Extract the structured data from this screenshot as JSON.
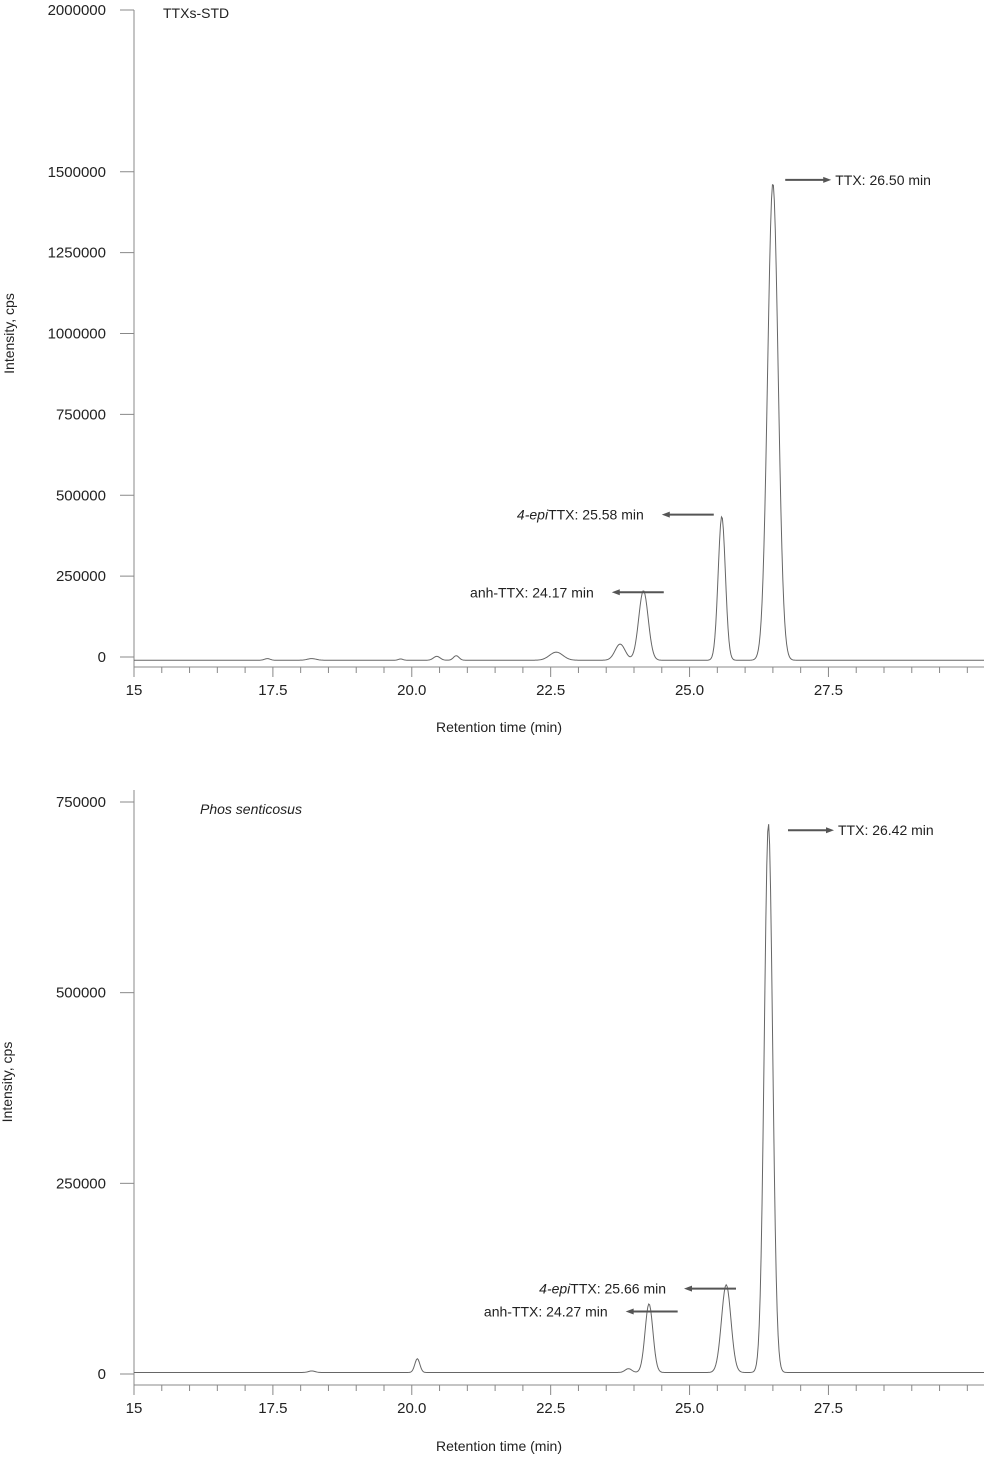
{
  "chart_data": [
    {
      "type": "line",
      "title": "TTXs-STD",
      "xlabel": "Retention time (min)",
      "ylabel": "Intensity, cps",
      "xlim": [
        15,
        30.3
      ],
      "ylim": [
        0,
        2000000
      ],
      "x_ticks": [
        "15",
        "17.5",
        "20.0",
        "22.5",
        "25.0",
        "27.5"
      ],
      "x_tick_values": [
        15,
        17.5,
        20.0,
        22.5,
        25.0,
        27.5
      ],
      "y_ticks": [
        "0",
        "250000",
        "500000",
        "750000",
        "1000000",
        "1250000",
        "1500000",
        "2000000"
      ],
      "y_tick_values": [
        0,
        250000,
        500000,
        750000,
        1000000,
        1250000,
        1500000,
        2000000
      ],
      "grid": false,
      "baseline": -10000,
      "peaks": [
        {
          "x": 17.4,
          "y": 5000,
          "w": 0.05
        },
        {
          "x": 18.2,
          "y": 5000,
          "w": 0.08
        },
        {
          "x": 19.8,
          "y": 4000,
          "w": 0.04
        },
        {
          "x": 20.45,
          "y": 12000,
          "w": 0.06
        },
        {
          "x": 20.8,
          "y": 14000,
          "w": 0.05
        },
        {
          "x": 22.6,
          "y": 25000,
          "w": 0.12
        },
        {
          "x": 23.75,
          "y": 50000,
          "w": 0.09
        },
        {
          "x": 24.17,
          "y": 215000,
          "w": 0.085
        },
        {
          "x": 25.58,
          "y": 445000,
          "w": 0.065
        },
        {
          "x": 26.5,
          "y": 1475000,
          "w": 0.095
        }
      ],
      "annotations": [
        {
          "prefix": "",
          "italic": "",
          "text": "TTX: 26.50 min",
          "x": 27.55,
          "y": 1475000,
          "arrow": "right"
        },
        {
          "prefix": "",
          "italic": "4-epi",
          "text": "TTX: 25.58 min",
          "x": 24.5,
          "y": 440000,
          "arrow": "left"
        },
        {
          "prefix": "",
          "italic": "",
          "text": "anh-TTX: 24.17 min",
          "x": 23.6,
          "y": 200000,
          "arrow": "left"
        }
      ]
    },
    {
      "type": "line",
      "title": "Phos senticosus",
      "xlabel": "Retention time (min)",
      "ylabel": "Intensity, cps",
      "xlim": [
        15,
        30.3
      ],
      "ylim": [
        0,
        750000
      ],
      "x_ticks": [
        "15",
        "17.5",
        "20.0",
        "22.5",
        "25.0",
        "27.5"
      ],
      "x_tick_values": [
        15,
        17.5,
        20.0,
        22.5,
        25.0,
        27.5
      ],
      "y_ticks": [
        "0",
        "250000",
        "500000",
        "750000"
      ],
      "y_tick_values": [
        0,
        250000,
        500000,
        750000
      ],
      "grid": false,
      "baseline": 2000,
      "peaks": [
        {
          "x": 18.2,
          "y": 2000,
          "w": 0.06
        },
        {
          "x": 20.1,
          "y": 18000,
          "w": 0.045
        },
        {
          "x": 23.9,
          "y": 5000,
          "w": 0.06
        },
        {
          "x": 24.27,
          "y": 90000,
          "w": 0.07
        },
        {
          "x": 25.66,
          "y": 115000,
          "w": 0.085
        },
        {
          "x": 26.42,
          "y": 720000,
          "w": 0.075
        }
      ],
      "annotations": [
        {
          "prefix": "",
          "italic": "",
          "text": "TTX: 26.42 min",
          "x": 27.6,
          "y": 713000,
          "arrow": "right"
        },
        {
          "prefix": "",
          "italic": "4-epi",
          "text": "TTX: 25.66 min",
          "x": 24.9,
          "y": 112000,
          "arrow": "left"
        },
        {
          "prefix": "",
          "italic": "",
          "text": "anh-TTX: 24.27 min",
          "x": 23.85,
          "y": 82000,
          "arrow": "left"
        }
      ]
    }
  ]
}
